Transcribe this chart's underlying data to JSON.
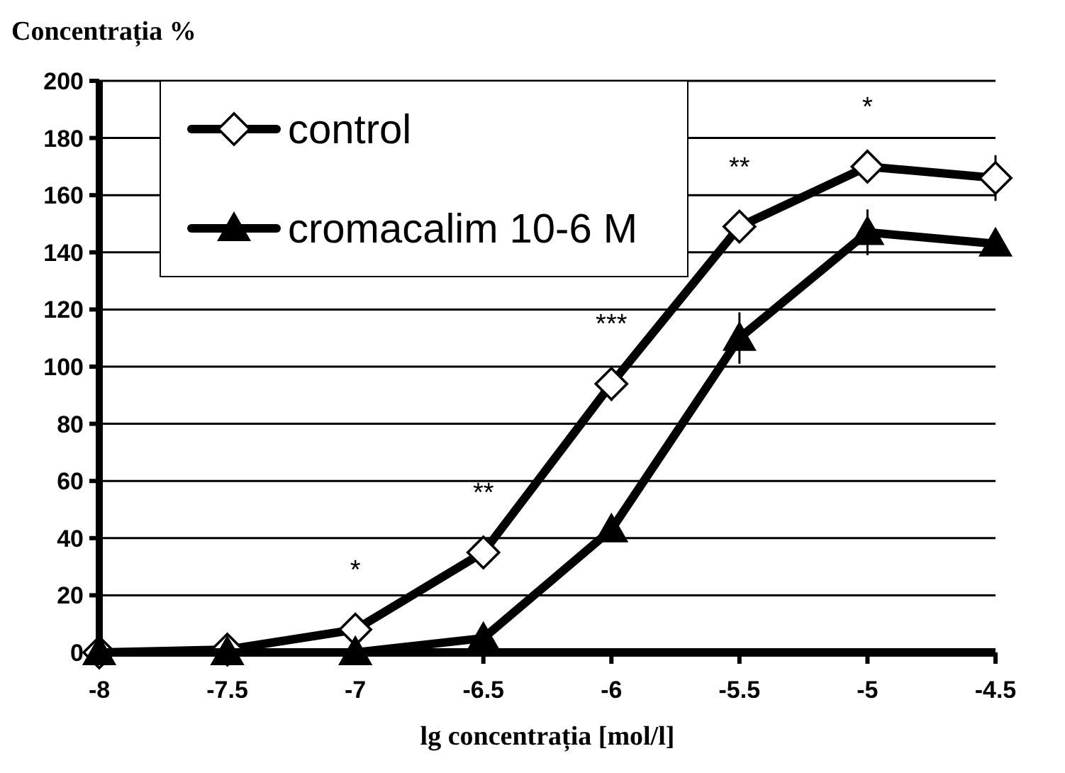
{
  "chart_data": {
    "type": "line",
    "ylabel": "Concentrația %",
    "xlabel": "lg concentrația [mol/l]",
    "x": [
      -8,
      -7.5,
      -7,
      -6.5,
      -6,
      -5.5,
      -5,
      -4.5
    ],
    "xlim": [
      -8,
      -4.5
    ],
    "xticks": [
      -8,
      -7.5,
      -7,
      -6.5,
      -6,
      -5.5,
      -5,
      -4.5
    ],
    "ylim": [
      0,
      200
    ],
    "yticks": [
      0,
      20,
      40,
      60,
      80,
      100,
      120,
      140,
      160,
      180,
      200
    ],
    "grid": "y",
    "legend": "top left",
    "line_style": "solid",
    "series": [
      {
        "name": "control",
        "color": "#000000",
        "marker": "diamond",
        "values": [
          0,
          1,
          8,
          35,
          94,
          149,
          170,
          166
        ],
        "errors": [
          null,
          null,
          null,
          null,
          6,
          4,
          5,
          8
        ]
      },
      {
        "name": "cromacalim 10-6 M",
        "color": "#000000",
        "marker": "triangle",
        "values": [
          0,
          0,
          0,
          5,
          43,
          110,
          147,
          143
        ],
        "errors": [
          null,
          null,
          null,
          null,
          null,
          9,
          8,
          null
        ]
      }
    ],
    "annotations": [
      {
        "text": "*",
        "x": -7,
        "y": 8
      },
      {
        "text": "**",
        "x": -6.5,
        "y": 35
      },
      {
        "text": "***",
        "x": -6,
        "y": 94
      },
      {
        "text": "**",
        "x": -5.5,
        "y": 149
      },
      {
        "text": "*",
        "x": -5,
        "y": 170
      }
    ]
  }
}
